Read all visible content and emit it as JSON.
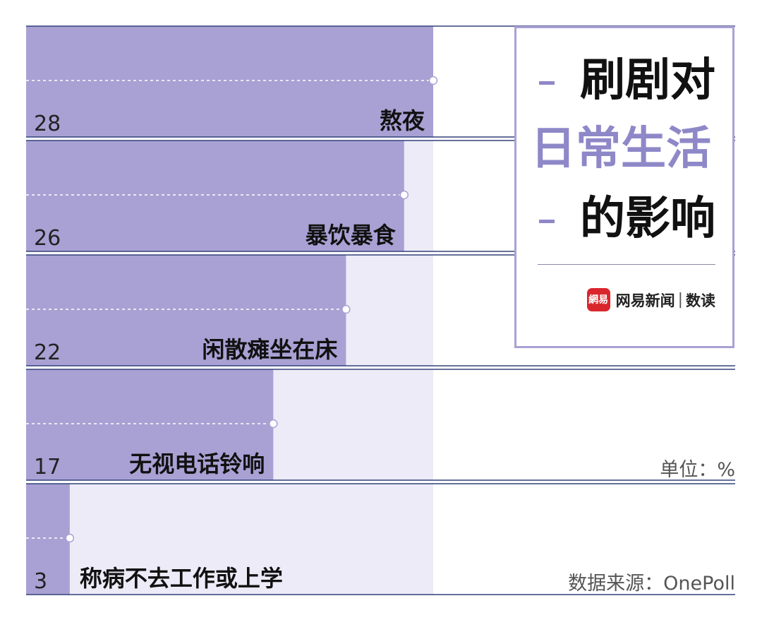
{
  "chart_data": {
    "type": "bar",
    "orientation": "horizontal",
    "categories": [
      "熬夜",
      "暴饮暴食",
      "闲散瘫坐在床",
      "无视电话铃响",
      "称病不去工作或上学"
    ],
    "values": [
      28,
      26,
      22,
      17,
      3
    ],
    "xlim": [
      0,
      28
    ],
    "unit_label": "单位：%",
    "source_label": "数据来源：OnePoll",
    "grid": false,
    "colors": {
      "bar": "#a9a1d4",
      "track": "#ecebf7",
      "rule": "#33407a",
      "accent": "#8e88c8"
    }
  },
  "title": {
    "line1": "刷剧对",
    "line2": "日常生活",
    "line3": "的影响"
  },
  "brand": {
    "logo_text": "網易",
    "name": "网易新闻",
    "separator": "|",
    "sub": "数读"
  }
}
